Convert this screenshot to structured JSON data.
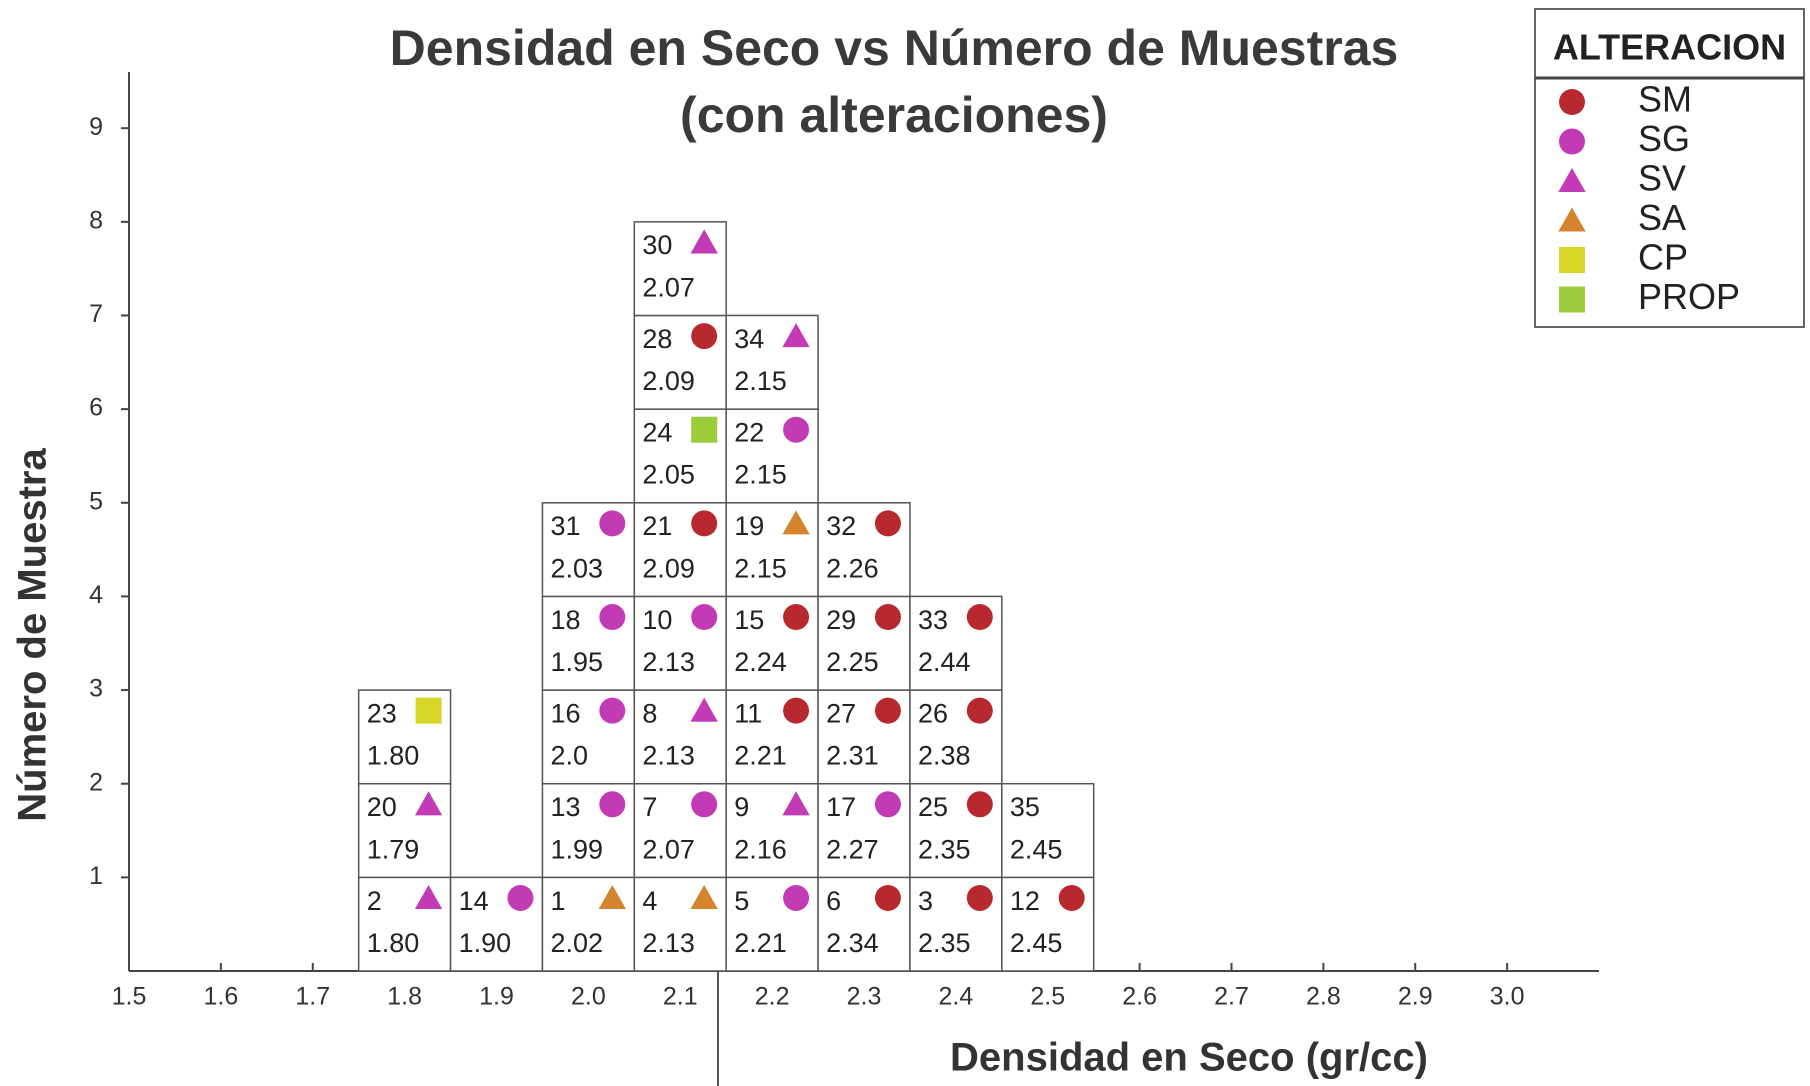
{
  "chart_data": {
    "type": "cell-histogram",
    "title": "Densidad en Seco vs Número de Muestras",
    "subtitle": "(con alteraciones)",
    "x_label": "Densidad en Seco (gr/cc)",
    "y_label": "Número de Muestra",
    "xlim": [
      1.5,
      3.1
    ],
    "ylim": [
      0,
      9.6
    ],
    "xticks": [
      1.5,
      1.6,
      1.7,
      1.8,
      1.9,
      {
        "value": 2,
        "label": "2.0"
      },
      2.1,
      2.2,
      2.3,
      2.4,
      2.5,
      2.6,
      2.7,
      2.8,
      2.9,
      {
        "value": 3,
        "label": "3.0"
      }
    ],
    "yticks": [
      1,
      2,
      3,
      4,
      5,
      6,
      7,
      8,
      9
    ],
    "legend": {
      "title": "ALTERACION",
      "position": "upper right",
      "items": [
        {
          "name": "SM",
          "color": "#b8292f",
          "shape": "circle"
        },
        {
          "name": "SG",
          "color": "#c23bb5",
          "shape": "circle"
        },
        {
          "name": "SV",
          "color": "#c23bb5",
          "shape": "triangle"
        },
        {
          "name": "SA",
          "color": "#d4842c",
          "shape": "triangle"
        },
        {
          "name": "CP",
          "color": "#d9d62a",
          "shape": "square"
        },
        {
          "name": "PROP",
          "color": "#9ccc3a",
          "shape": "square"
        }
      ]
    },
    "samples": [
      {
        "id": 2,
        "density": {
          "value": 1.8,
          "label": "1.80"
        },
        "alteration": "SV"
      },
      {
        "id": 20,
        "density": 1.79,
        "alteration": "SV"
      },
      {
        "id": 23,
        "density": {
          "value": 1.8,
          "label": "1.80"
        },
        "alteration": "CP"
      },
      {
        "id": 14,
        "density": {
          "value": 1.9,
          "label": "1.90"
        },
        "alteration": "SG"
      },
      {
        "id": 1,
        "density": 2.02,
        "alteration": "SA"
      },
      {
        "id": 13,
        "density": 1.99,
        "alteration": "SG"
      },
      {
        "id": 16,
        "density": {
          "value": 2,
          "label": "2.0"
        },
        "alteration": "SG"
      },
      {
        "id": 18,
        "density": 1.95,
        "alteration": "SG"
      },
      {
        "id": 31,
        "density": 2.03,
        "alteration": "SG"
      },
      {
        "id": 4,
        "density": 2.13,
        "alteration": "SA"
      },
      {
        "id": 7,
        "density": 2.07,
        "alteration": "SG"
      },
      {
        "id": 8,
        "density": 2.13,
        "alteration": "SV"
      },
      {
        "id": 10,
        "density": 2.13,
        "alteration": "SG"
      },
      {
        "id": 21,
        "density": 2.09,
        "alteration": "SM"
      },
      {
        "id": 24,
        "density": 2.05,
        "alteration": "PROP"
      },
      {
        "id": 28,
        "density": 2.09,
        "alteration": "SM"
      },
      {
        "id": 30,
        "density": 2.07,
        "alteration": "SV"
      },
      {
        "id": 5,
        "density": 2.21,
        "alteration": "SG"
      },
      {
        "id": 9,
        "density": 2.16,
        "alteration": "SV"
      },
      {
        "id": 11,
        "density": 2.21,
        "alteration": "SM"
      },
      {
        "id": 15,
        "density": 2.24,
        "alteration": "SM"
      },
      {
        "id": 19,
        "density": 2.15,
        "alteration": "SA"
      },
      {
        "id": 22,
        "density": 2.15,
        "alteration": "SG"
      },
      {
        "id": 34,
        "density": 2.15,
        "alteration": "SV"
      },
      {
        "id": 6,
        "density": 2.34,
        "alteration": "SM"
      },
      {
        "id": 17,
        "density": 2.27,
        "alteration": "SG"
      },
      {
        "id": 27,
        "density": 2.31,
        "alteration": "SM"
      },
      {
        "id": 29,
        "density": 2.25,
        "alteration": "SM"
      },
      {
        "id": 32,
        "density": 2.26,
        "alteration": "SM"
      },
      {
        "id": 3,
        "density": 2.35,
        "alteration": "SM"
      },
      {
        "id": 25,
        "density": 2.35,
        "alteration": "SM"
      },
      {
        "id": 26,
        "density": 2.38,
        "alteration": "SM"
      },
      {
        "id": 33,
        "density": 2.44,
        "alteration": "SM"
      },
      {
        "id": 12,
        "density": 2.45,
        "alteration": "SM"
      },
      {
        "id": 35,
        "density": 2.45
      }
    ]
  }
}
